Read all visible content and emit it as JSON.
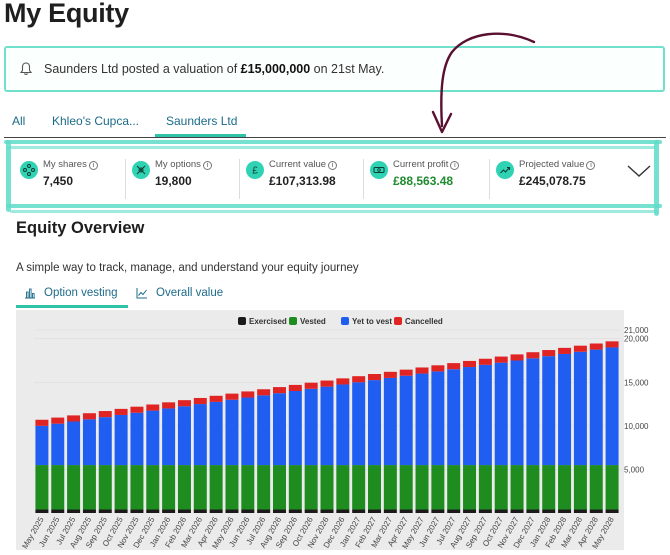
{
  "page": {
    "title": "My Equity"
  },
  "notice": {
    "prefix": "Saunders Ltd posted a valuation of ",
    "amount": "£15,000,000",
    "suffix": " on 21st May."
  },
  "tabs": [
    {
      "label": "All"
    },
    {
      "label": "Khleo's Cupca..."
    },
    {
      "label": "Saunders Ltd",
      "active": true
    }
  ],
  "stats": [
    {
      "label": "My shares",
      "value": "7,450",
      "icon": "network-icon"
    },
    {
      "label": "My options",
      "value": "19,800",
      "icon": "options-icon"
    },
    {
      "label": "Current value",
      "value": "£107,313.98",
      "icon": "pound-icon"
    },
    {
      "label": "Current profit",
      "value": "£88,563.48",
      "icon": "cash-icon",
      "value_color": "#1f8a2e"
    },
    {
      "label": "Projected value",
      "value": "£245,078.75",
      "icon": "trend-icon"
    }
  ],
  "section": {
    "title": "Equity Overview",
    "subtitle": "A simple way to track, manage, and understand your equity journey"
  },
  "view_tabs": [
    {
      "label": "Option vesting",
      "active": true
    },
    {
      "label": "Overall value"
    }
  ],
  "colors": {
    "accent": "#2fc4a8",
    "highlight": "#5fdcc8",
    "exercised": "#1a1a1a",
    "vested": "#1e8c1e",
    "yet_to_vest": "#1f5ef0",
    "cancelled": "#e02424",
    "arrow": "#5a1030"
  },
  "chart_data": {
    "type": "bar",
    "stacked": true,
    "legend_position": "top",
    "y_axis_side": "right",
    "ylim": [
      0,
      21000
    ],
    "yticks": [
      5000,
      10000,
      15000,
      20000,
      21000
    ],
    "ytick_labels": [
      "5,000",
      "10,000",
      "15,000",
      "20,000",
      "21,000"
    ],
    "categories": [
      "May 2025",
      "Jun 2025",
      "Jul 2025",
      "Aug 2025",
      "Sep 2025",
      "Oct 2025",
      "Nov 2025",
      "Dec 2025",
      "Jan 2026",
      "Feb 2026",
      "Mar 2026",
      "Apr 2026",
      "May 2026",
      "Jun 2026",
      "Jul 2026",
      "Aug 2026",
      "Sep 2026",
      "Oct 2026",
      "Nov 2026",
      "Dec 2026",
      "Jan 2027",
      "Feb 2027",
      "Mar 2027",
      "Apr 2027",
      "May 2027",
      "Jun 2027",
      "Jul 2027",
      "Aug 2027",
      "Sep 2027",
      "Oct 2027",
      "Nov 2027",
      "Dec 2027",
      "Jan 2028",
      "Feb 2028",
      "Mar 2028",
      "Apr 2028",
      "May 2028"
    ],
    "series": [
      {
        "name": "Exercised",
        "color": "#1a1a1a",
        "values": [
          400,
          400,
          400,
          400,
          400,
          400,
          400,
          400,
          400,
          400,
          400,
          400,
          400,
          400,
          400,
          400,
          400,
          400,
          400,
          400,
          400,
          400,
          400,
          400,
          400,
          400,
          400,
          400,
          400,
          400,
          400,
          400,
          400,
          400,
          400,
          400,
          400
        ]
      },
      {
        "name": "Vested",
        "color": "#1e8c1e",
        "values": [
          5100,
          5100,
          5100,
          5100,
          5100,
          5100,
          5100,
          5100,
          5100,
          5100,
          5100,
          5100,
          5100,
          5100,
          5100,
          5100,
          5100,
          5100,
          5100,
          5100,
          5100,
          5100,
          5100,
          5100,
          5100,
          5100,
          5100,
          5100,
          5100,
          5100,
          5100,
          5100,
          5100,
          5100,
          5100,
          5100,
          5100
        ]
      },
      {
        "name": "Yet to vest",
        "color": "#1f5ef0",
        "values": [
          4500,
          4750,
          5000,
          5250,
          5500,
          5750,
          6000,
          6250,
          6500,
          6750,
          7000,
          7250,
          7500,
          7750,
          8000,
          8250,
          8500,
          8750,
          9000,
          9250,
          9500,
          9750,
          10000,
          10250,
          10500,
          10750,
          11000,
          11250,
          11500,
          11750,
          12000,
          12250,
          12500,
          12750,
          13000,
          13250,
          13500
        ]
      },
      {
        "name": "Cancelled",
        "color": "#e02424",
        "values": [
          700,
          700,
          700,
          700,
          700,
          700,
          700,
          700,
          700,
          700,
          700,
          700,
          700,
          700,
          700,
          700,
          700,
          700,
          700,
          700,
          700,
          700,
          700,
          700,
          700,
          700,
          700,
          700,
          700,
          700,
          700,
          700,
          700,
          700,
          700,
          700,
          700
        ]
      }
    ]
  }
}
